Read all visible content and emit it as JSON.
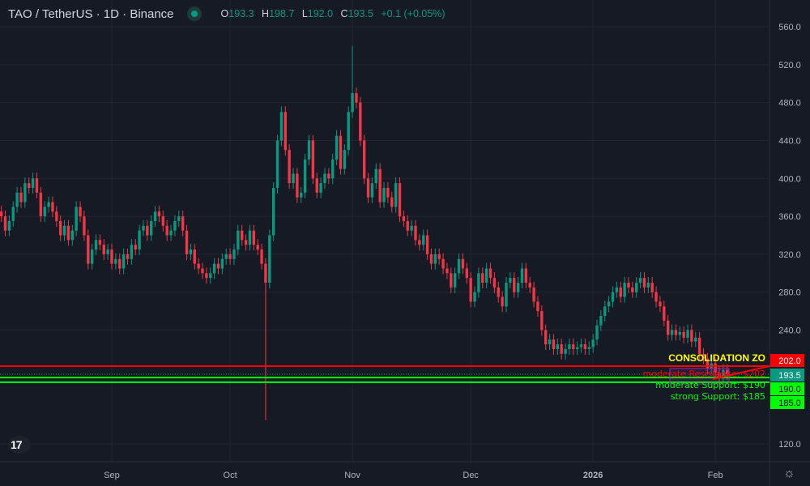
{
  "header": {
    "symbol": "TAO / TetherUS · 1D · Binance",
    "status_color": "#089981",
    "ohlc": {
      "o_label": "O",
      "o": "193.3",
      "h_label": "H",
      "h": "198.7",
      "l_label": "L",
      "l": "192.0",
      "c_label": "C",
      "c": "193.5",
      "change": "+0.1 (+0.05%)"
    }
  },
  "colors": {
    "up": "#089981",
    "down": "#f23645",
    "background": "#161a25",
    "grid": "#232632",
    "resistance": "#ff0000",
    "support": "#00ff00",
    "zone_text": "#ffff00",
    "zone_box": "#9c27b0"
  },
  "chart_data": {
    "type": "candlestick",
    "x_ticks": [
      {
        "label": "Sep",
        "date": "2025-09-01"
      },
      {
        "label": "Oct",
        "date": "2025-10-01"
      },
      {
        "label": "Nov",
        "date": "2025-11-01"
      },
      {
        "label": "Dec",
        "date": "2025-12-01"
      },
      {
        "label": "2026",
        "date": "2026-01-01"
      },
      {
        "label": "Feb",
        "date": "2026-02-01"
      }
    ],
    "y_ticks": [
      "560.0",
      "520.0",
      "480.0",
      "440.0",
      "400.0",
      "360.0",
      "320.0",
      "280.0",
      "240.0",
      "120.0"
    ],
    "ylim": [
      120,
      560
    ],
    "start_date": "2025-08-04",
    "closes": [
      360,
      345,
      355,
      370,
      385,
      375,
      395,
      390,
      400,
      385,
      360,
      370,
      375,
      365,
      355,
      340,
      350,
      335,
      345,
      370,
      360,
      340,
      310,
      325,
      335,
      330,
      320,
      325,
      310,
      315,
      305,
      320,
      315,
      330,
      325,
      345,
      350,
      340,
      355,
      365,
      360,
      350,
      340,
      345,
      355,
      360,
      345,
      320,
      325,
      310,
      305,
      300,
      295,
      300,
      310,
      305,
      315,
      320,
      315,
      325,
      345,
      335,
      330,
      345,
      330,
      325,
      310,
      290,
      340,
      390,
      440,
      470,
      430,
      395,
      405,
      380,
      385,
      420,
      440,
      400,
      385,
      395,
      405,
      400,
      420,
      445,
      410,
      430,
      470,
      490,
      480,
      440,
      400,
      380,
      395,
      410,
      375,
      390,
      380,
      370,
      395,
      360,
      355,
      345,
      350,
      335,
      330,
      340,
      320,
      310,
      320,
      315,
      305,
      300,
      285,
      300,
      315,
      305,
      295,
      270,
      280,
      300,
      290,
      305,
      295,
      285,
      275,
      265,
      290,
      295,
      280,
      290,
      305,
      290,
      285,
      270,
      260,
      240,
      225,
      230,
      220,
      225,
      215,
      220,
      225,
      220,
      222,
      225,
      220,
      222,
      230,
      245,
      255,
      265,
      270,
      280,
      285,
      275,
      290,
      285,
      280,
      290,
      295,
      285,
      290,
      280,
      270,
      265,
      250,
      235,
      240,
      235,
      238,
      232,
      240,
      228,
      232,
      215,
      210,
      200,
      205,
      195,
      190,
      198,
      193.5
    ],
    "wick_overrides": [
      {
        "date": "2025-10-10",
        "low": 145
      },
      {
        "date": "2025-11-01",
        "high": 540
      }
    ],
    "levels": [
      {
        "price": 202,
        "label": "202.0",
        "color": "#ff0000",
        "text": "moderate Resistance: $202"
      },
      {
        "price": 190,
        "label": "190.0",
        "color": "#00ff00",
        "text": "moderate Support: $190"
      },
      {
        "price": 185,
        "label": "185.0",
        "color": "#00ff00",
        "text": "strong Support: $185"
      }
    ],
    "last_price": {
      "price": 193.5,
      "label": "193.5",
      "color": "#089981"
    },
    "zone_label": "CONSOLIDATION ZO"
  }
}
